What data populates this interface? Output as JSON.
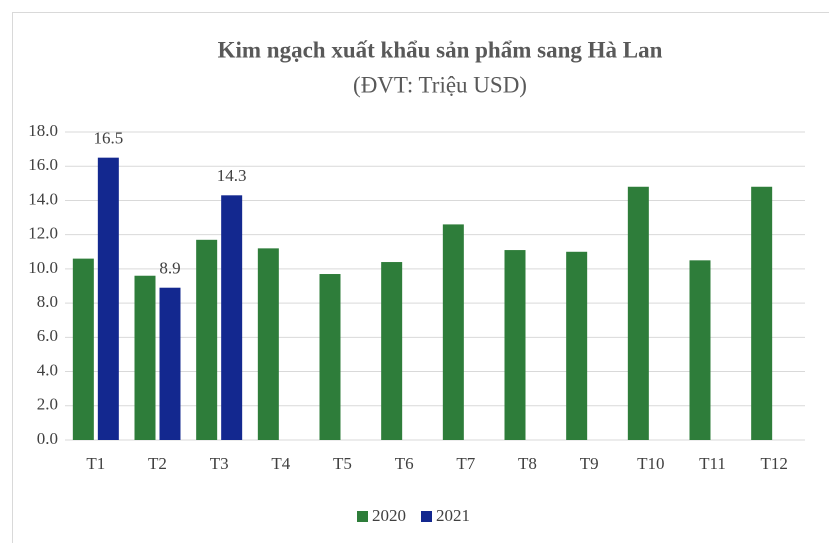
{
  "chart_data": {
    "type": "bar",
    "title": "Kim ngạch xuất khẩu sản phẩm sang Hà Lan",
    "subtitle": "(ĐVT: Triệu USD)",
    "categories": [
      "T1",
      "T2",
      "T3",
      "T4",
      "T5",
      "T6",
      "T7",
      "T8",
      "T9",
      "T10",
      "T11",
      "T12"
    ],
    "series": [
      {
        "name": "2020",
        "color": "#2e7d3a",
        "values": [
          10.6,
          9.6,
          11.7,
          11.2,
          9.7,
          10.4,
          12.6,
          11.1,
          11.0,
          14.8,
          10.5,
          14.8
        ]
      },
      {
        "name": "2021",
        "color": "#13288f",
        "values": [
          16.5,
          8.9,
          14.3,
          null,
          null,
          null,
          null,
          null,
          null,
          null,
          null,
          null
        ],
        "data_labels": true
      }
    ],
    "ylim": [
      0,
      18
    ],
    "yticks": [
      {
        "value": 0,
        "label": "0.0"
      },
      {
        "value": 2,
        "label": "2.0"
      },
      {
        "value": 4,
        "label": "4.0"
      },
      {
        "value": 6,
        "label": "6.0"
      },
      {
        "value": 8,
        "label": "8.0"
      },
      {
        "value": 10,
        "label": "10.0"
      },
      {
        "value": 12,
        "label": "12.0"
      },
      {
        "value": 14,
        "label": "14.0"
      },
      {
        "value": 16,
        "label": "16.0"
      },
      {
        "value": 18,
        "label": "18.0"
      }
    ],
    "grid": true,
    "legend": "bottom"
  }
}
